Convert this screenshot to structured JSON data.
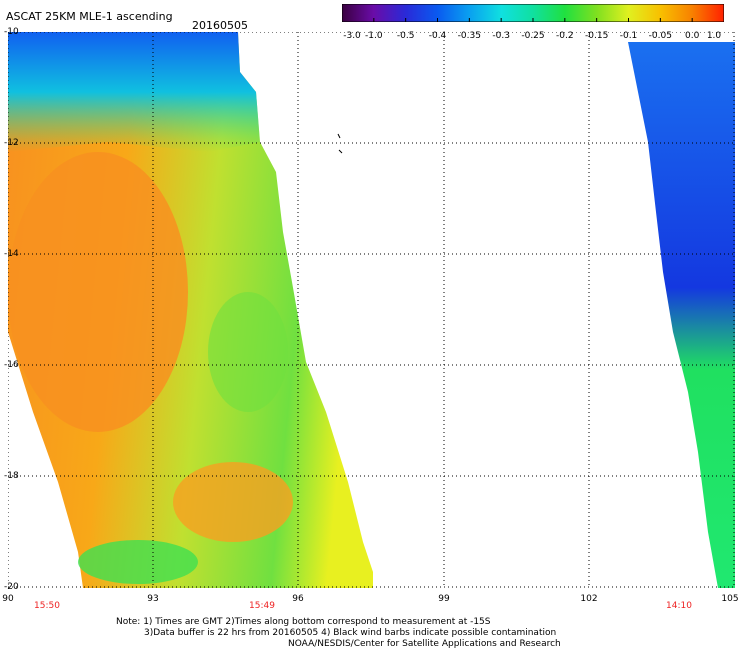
{
  "header": {
    "title": "ASCAT 25KM MLE-1 ascending",
    "date": "20160505"
  },
  "colorbar": {
    "labels": [
      "-3.0",
      "-1.0",
      "-0.5",
      "-0.4",
      "-0.35",
      "-0.3",
      "-0.25",
      "-0.2",
      "-0.15",
      "-0.1",
      "-0.05",
      "0.0",
      "1.0"
    ],
    "colors": [
      "#3a0040",
      "#6a0ca8",
      "#2a2ad8",
      "#0a5af0",
      "#0aa0f0",
      "#10e0e0",
      "#10e0a0",
      "#20e040",
      "#80e020",
      "#e0f020",
      "#f8c000",
      "#f88000",
      "#ff2000"
    ]
  },
  "map": {
    "lat_labels": [
      "-10",
      "-12",
      "-14",
      "-16",
      "-18",
      "-20"
    ],
    "lon_labels": [
      "90",
      "93",
      "96",
      "99",
      "102",
      "105"
    ],
    "time_labels": [
      "15:50",
      "15:49",
      "14:10"
    ]
  },
  "notes": {
    "line1": "Note: 1) Times are GMT 2)Times along bottom correspond to measurement at -15S",
    "line2": "3)Data buffer is 22 hrs from 20160505 4) Black wind barbs indicate possible contamination",
    "line3": "NOAA/NESDIS/Center for Satellite Applications and Research"
  }
}
